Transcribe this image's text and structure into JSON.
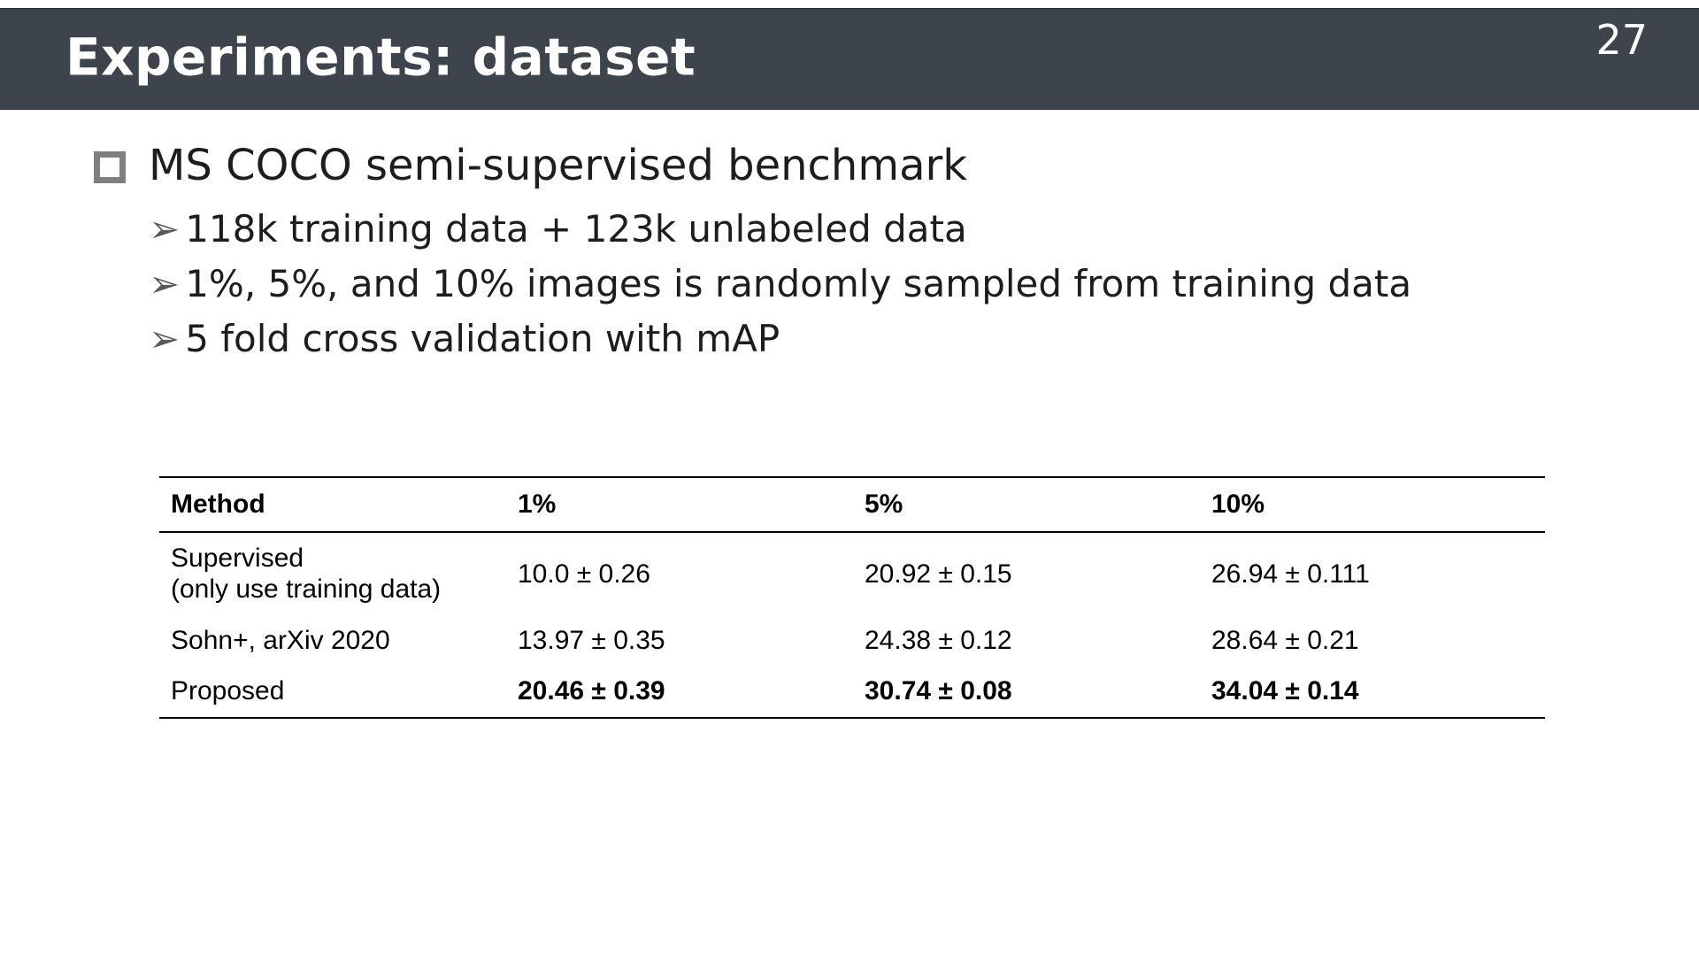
{
  "slide": {
    "title": "Experiments: dataset",
    "page_number": "27"
  },
  "bullets": {
    "marker": "➢",
    "main": "MS COCO semi-supervised benchmark",
    "sub": [
      "118k training data + 123k unlabeled data",
      "1%, 5%, and 10% images is randomly sampled from training data",
      "5 fold cross validation with mAP"
    ]
  },
  "table": {
    "headers": [
      "Method",
      "1%",
      "5%",
      "10%"
    ],
    "rows": [
      {
        "method_lines": [
          "Supervised",
          "(only use training data)"
        ],
        "values": [
          "10.0 ± 0.26",
          "20.92 ± 0.15",
          "26.94 ± 0.111"
        ]
      },
      {
        "method_lines": [
          "Sohn+, arXiv 2020"
        ],
        "values": [
          "13.97 ± 0.35",
          "24.38 ± 0.12",
          "28.64 ± 0.21"
        ]
      },
      {
        "method_lines": [
          "Proposed"
        ],
        "values": [
          "20.46 ± 0.39",
          "30.74 ± 0.08",
          "34.04 ± 0.14"
        ]
      }
    ]
  }
}
